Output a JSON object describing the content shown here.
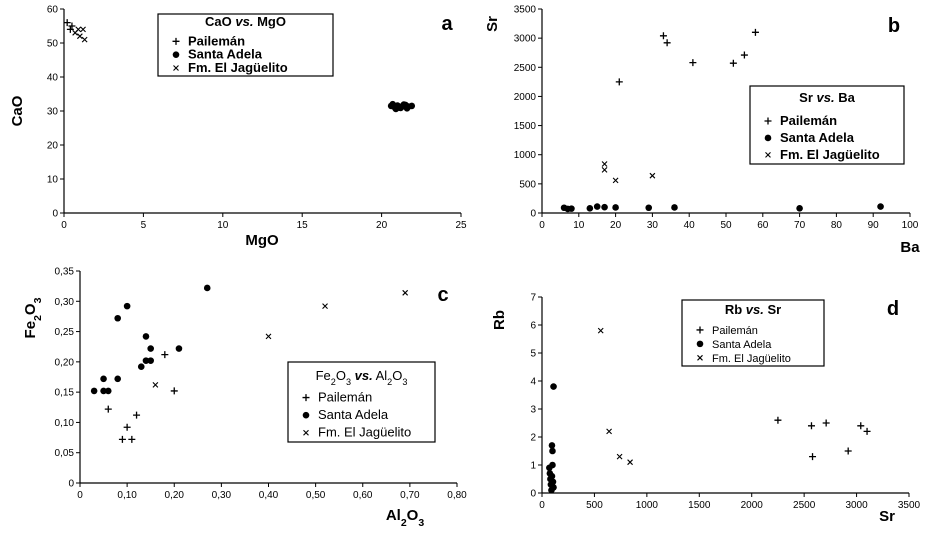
{
  "chart_data": [
    {
      "id": "a",
      "type": "scatter",
      "panel_letter": "a",
      "legend_title": "CaO vs. MgO",
      "xlabel": "MgO",
      "ylabel": "CaO",
      "xlim": [
        0,
        25
      ],
      "ylim": [
        0,
        60
      ],
      "x_ticks": [
        0,
        5,
        10,
        15,
        20,
        25
      ],
      "y_ticks": [
        0,
        10,
        20,
        30,
        40,
        50,
        60
      ],
      "series": [
        {
          "name": "Pailemán",
          "marker": "plus",
          "points": [
            [
              0.2,
              56
            ],
            [
              0.5,
              55
            ],
            [
              0.4,
              54
            ]
          ]
        },
        {
          "name": "Santa Adela",
          "marker": "dot",
          "points": [
            [
              20.6,
              31.5
            ],
            [
              20.8,
              31.2
            ],
            [
              21.0,
              31.6
            ],
            [
              21.1,
              31.0
            ],
            [
              21.3,
              31.4
            ],
            [
              21.5,
              31.8
            ],
            [
              21.7,
              31.3
            ],
            [
              20.9,
              30.6
            ],
            [
              21.2,
              30.9
            ],
            [
              21.4,
              31.9
            ],
            [
              21.6,
              30.8
            ],
            [
              21.9,
              31.5
            ],
            [
              20.7,
              32.0
            ]
          ]
        },
        {
          "name": "Fm. El Jagüelito",
          "marker": "x",
          "points": [
            [
              0.7,
              53
            ],
            [
              1.0,
              52
            ],
            [
              1.3,
              51
            ],
            [
              1.2,
              54
            ],
            [
              0.9,
              54
            ]
          ]
        }
      ]
    },
    {
      "id": "b",
      "type": "scatter",
      "panel_letter": "b",
      "legend_title": "Sr vs. Ba",
      "xlabel": "Ba",
      "ylabel": "Sr",
      "xlim": [
        0,
        100
      ],
      "ylim": [
        0,
        3500
      ],
      "x_ticks": [
        0,
        10,
        20,
        30,
        40,
        50,
        60,
        70,
        80,
        90,
        100
      ],
      "y_ticks": [
        0,
        500,
        1000,
        1500,
        2000,
        2500,
        3000,
        3500
      ],
      "series": [
        {
          "name": "Pailemán",
          "marker": "plus",
          "points": [
            [
              21,
              2250
            ],
            [
              33,
              3040
            ],
            [
              34,
              2920
            ],
            [
              41,
              2580
            ],
            [
              52,
              2570
            ],
            [
              55,
              2710
            ],
            [
              58,
              3100
            ]
          ]
        },
        {
          "name": "Santa Adela",
          "marker": "dot",
          "points": [
            [
              6,
              90
            ],
            [
              7,
              70
            ],
            [
              8,
              75
            ],
            [
              13,
              80
            ],
            [
              15,
              110
            ],
            [
              17,
              100
            ],
            [
              20,
              95
            ],
            [
              29,
              90
            ],
            [
              36,
              95
            ],
            [
              70,
              80
            ],
            [
              92,
              110
            ]
          ]
        },
        {
          "name": "Fm. El Jagüelito",
          "marker": "x",
          "points": [
            [
              17,
              840
            ],
            [
              17,
              740
            ],
            [
              20,
              560
            ],
            [
              30,
              640
            ]
          ]
        }
      ]
    },
    {
      "id": "c",
      "type": "scatter",
      "panel_letter": "c",
      "legend_title": "Fe2O3 vs. Al2O3",
      "xlabel": "Al2O3",
      "ylabel": "Fe2O3",
      "xlim": [
        0,
        0.8
      ],
      "ylim": [
        0,
        0.35
      ],
      "x_ticks": [
        "0",
        "0,10",
        "0,20",
        "0,30",
        "0,40",
        "0,50",
        "0,60",
        "0,70",
        "0,80"
      ],
      "y_ticks": [
        "0",
        "0,05",
        "0,10",
        "0,15",
        "0,20",
        "0,25",
        "0,30",
        "0,35"
      ],
      "series": [
        {
          "name": "Pailemán",
          "marker": "plus",
          "points": [
            [
              0.06,
              0.122
            ],
            [
              0.09,
              0.072
            ],
            [
              0.1,
              0.092
            ],
            [
              0.11,
              0.072
            ],
            [
              0.12,
              0.112
            ],
            [
              0.18,
              0.212
            ],
            [
              0.2,
              0.152
            ]
          ]
        },
        {
          "name": "Santa Adela",
          "marker": "dot",
          "points": [
            [
              0.03,
              0.152
            ],
            [
              0.05,
              0.172
            ],
            [
              0.05,
              0.152
            ],
            [
              0.06,
              0.152
            ],
            [
              0.08,
              0.172
            ],
            [
              0.08,
              0.272
            ],
            [
              0.1,
              0.292
            ],
            [
              0.13,
              0.192
            ],
            [
              0.14,
              0.242
            ],
            [
              0.14,
              0.202
            ],
            [
              0.15,
              0.222
            ],
            [
              0.15,
              0.202
            ],
            [
              0.21,
              0.222
            ],
            [
              0.27,
              0.322
            ]
          ]
        },
        {
          "name": "Fm. El Jagüelito",
          "marker": "x",
          "points": [
            [
              0.16,
              0.162
            ],
            [
              0.4,
              0.242
            ],
            [
              0.52,
              0.292
            ],
            [
              0.69,
              0.314
            ]
          ]
        }
      ]
    },
    {
      "id": "d",
      "type": "scatter",
      "panel_letter": "d",
      "legend_title": "Rb vs. Sr",
      "xlabel": "Sr",
      "ylabel": "Rb",
      "xlim": [
        0,
        3500
      ],
      "ylim": [
        0,
        7
      ],
      "x_ticks": [
        0,
        500,
        1000,
        1500,
        2000,
        2500,
        3000,
        3500
      ],
      "y_ticks": [
        0,
        1,
        2,
        3,
        4,
        5,
        6,
        7
      ],
      "series": [
        {
          "name": "Pailemán",
          "marker": "plus",
          "points": [
            [
              2250,
              2.6
            ],
            [
              2570,
              2.4
            ],
            [
              2580,
              1.3
            ],
            [
              2710,
              2.5
            ],
            [
              2920,
              1.5
            ],
            [
              3040,
              2.4
            ],
            [
              3100,
              2.2
            ]
          ]
        },
        {
          "name": "Santa Adela",
          "marker": "dot",
          "points": [
            [
              70,
              0.9
            ],
            [
              75,
              0.7
            ],
            [
              80,
              0.5
            ],
            [
              85,
              0.3
            ],
            [
              90,
              0.1
            ],
            [
              95,
              0.6
            ],
            [
              100,
              1.0
            ],
            [
              105,
              0.4
            ],
            [
              110,
              0.2
            ],
            [
              100,
              1.5
            ],
            [
              95,
              1.7
            ],
            [
              110,
              3.8
            ]
          ]
        },
        {
          "name": "Fm. El Jagüelito",
          "marker": "x",
          "points": [
            [
              560,
              5.8
            ],
            [
              640,
              2.2
            ],
            [
              740,
              1.3
            ],
            [
              840,
              1.1
            ]
          ]
        }
      ]
    }
  ]
}
